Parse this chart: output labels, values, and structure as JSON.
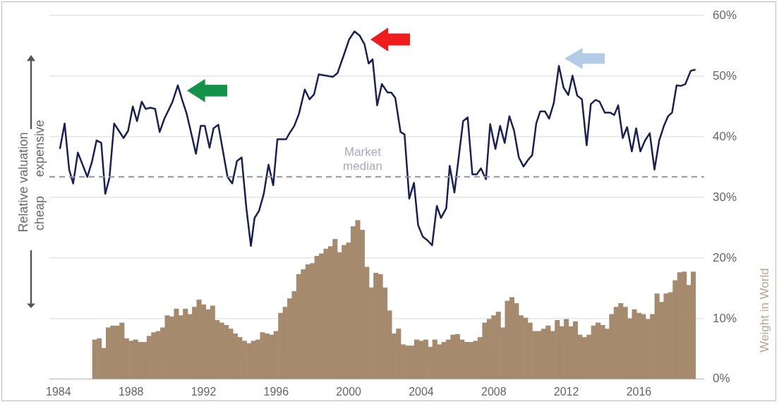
{
  "chart_data": {
    "type": "line",
    "ylabel": "Weight in World",
    "annotations": [
      "Relative valuation",
      "cheap",
      "expensive"
    ],
    "xlim": [
      1983.5,
      2019.6
    ],
    "xticks": [
      1984,
      1988,
      1992,
      1996,
      2000,
      2004,
      2008,
      2012,
      2016
    ],
    "ylim": [
      0,
      60
    ],
    "yticks": [
      {
        "value": 0,
        "label": "0%"
      },
      {
        "value": 10,
        "label": "10%"
      },
      {
        "value": 20,
        "label": "20%"
      },
      {
        "value": 30,
        "label": "30%"
      },
      {
        "value": 40,
        "label": "40%"
      },
      {
        "value": 50,
        "label": "50%"
      },
      {
        "value": 60,
        "label": "60%"
      }
    ],
    "grid": "y",
    "legend": false,
    "ref_lines": [
      {
        "axis": "y",
        "value": 33.4,
        "label": "Market median",
        "color": "#8d93a8",
        "line_style": "dashed"
      }
    ],
    "series": [
      {
        "type": "bar",
        "color": "#a58a6e",
        "x": [
          1986,
          1986.25,
          1986.5,
          1986.75,
          1987,
          1987.25,
          1987.5,
          1987.75,
          1988,
          1988.25,
          1988.5,
          1988.75,
          1989,
          1989.25,
          1989.5,
          1989.75,
          1990,
          1990.25,
          1990.5,
          1990.75,
          1991,
          1991.25,
          1991.5,
          1991.75,
          1992,
          1992.25,
          1992.5,
          1992.75,
          1993,
          1993.25,
          1993.5,
          1993.75,
          1994,
          1994.25,
          1994.5,
          1994.75,
          1995,
          1995.25,
          1995.5,
          1995.75,
          1996,
          1996.25,
          1996.5,
          1996.75,
          1997,
          1997.25,
          1997.5,
          1997.75,
          1998,
          1998.25,
          1998.5,
          1998.75,
          1999,
          1999.25,
          1999.5,
          1999.75,
          2000,
          2000.25,
          2000.5,
          2000.75,
          2001,
          2001.25,
          2001.5,
          2001.75,
          2002,
          2002.25,
          2002.5,
          2002.75,
          2003,
          2003.25,
          2003.5,
          2003.75,
          2004,
          2004.25,
          2004.5,
          2004.75,
          2005,
          2005.25,
          2005.5,
          2005.75,
          2006,
          2006.25,
          2006.5,
          2006.75,
          2007,
          2007.25,
          2007.5,
          2007.75,
          2008,
          2008.25,
          2008.5,
          2008.75,
          2009,
          2009.25,
          2009.5,
          2009.75,
          2010,
          2010.25,
          2010.5,
          2010.75,
          2011,
          2011.25,
          2011.5,
          2011.75,
          2012,
          2012.25,
          2012.5,
          2012.75,
          2013,
          2013.25,
          2013.5,
          2013.75,
          2014,
          2014.25,
          2014.5,
          2014.75,
          2015,
          2015.25,
          2015.5,
          2015.75,
          2016,
          2016.25,
          2016.5,
          2016.75,
          2017,
          2017.25,
          2017.5,
          2017.75,
          2018,
          2018.25,
          2018.5,
          2018.75,
          2019
        ],
        "values": [
          6.5,
          6.7,
          5.1,
          8.5,
          8.8,
          8.8,
          9.3,
          6.7,
          6.3,
          6.5,
          6.1,
          6.1,
          7.1,
          7.7,
          7.9,
          8.5,
          10.5,
          10.3,
          11.6,
          10.5,
          11.6,
          10.7,
          11.9,
          13.1,
          12.3,
          11.5,
          12.1,
          9.7,
          9.3,
          8.9,
          8.3,
          7.5,
          6.9,
          6.3,
          5.9,
          6.3,
          6.5,
          7.7,
          7.5,
          7.3,
          7.9,
          10.9,
          11.9,
          13.3,
          14.5,
          17.3,
          18.1,
          18.9,
          19.1,
          20.3,
          20.7,
          21.5,
          21.9,
          23.1,
          20.9,
          22.1,
          22.5,
          25.2,
          26.2,
          24.6,
          18.5,
          15.1,
          17.5,
          17.3,
          15.1,
          11.3,
          7.5,
          8.3,
          5.7,
          5.5,
          5.5,
          6.5,
          6.3,
          6.5,
          5.3,
          6.5,
          5.7,
          6.1,
          6.5,
          7.3,
          7.4,
          6.5,
          6.1,
          6.1,
          6.3,
          6.9,
          9.3,
          9.9,
          10.5,
          11.1,
          8.5,
          12.9,
          13.5,
          12.5,
          10.5,
          10.1,
          9.3,
          7.9,
          7.9,
          8.3,
          8.8,
          7.9,
          9.7,
          8.7,
          9.9,
          8.7,
          9.5,
          7.3,
          6.9,
          7.3,
          8.8,
          9.3,
          8.9,
          8.3,
          10.7,
          11.9,
          12.5,
          11.9,
          10.0,
          11.5,
          10.9,
          10.7,
          9.9,
          10.7,
          14.1,
          12.7,
          14.1,
          14.3,
          16.3,
          17.6,
          17.7,
          15.5,
          17.7
        ]
      },
      {
        "color": "#1a2050",
        "x": [
          1984.08,
          1984.34,
          1984.59,
          1984.81,
          1985.07,
          1985.33,
          1985.59,
          1985.84,
          1986.1,
          1986.36,
          1986.58,
          1986.81,
          1987.07,
          1987.33,
          1987.59,
          1987.84,
          1988.1,
          1988.33,
          1988.59,
          1988.81,
          1989.07,
          1989.33,
          1989.58,
          1989.84,
          1990.1,
          1990.29,
          1990.58,
          1990.81,
          1991.07,
          1991.32,
          1991.58,
          1991.84,
          1992.07,
          1992.33,
          1992.55,
          1992.81,
          1993.06,
          1993.32,
          1993.58,
          1993.84,
          1994.1,
          1994.36,
          1994.61,
          1994.81,
          1995.06,
          1995.32,
          1995.58,
          1995.84,
          1996.07,
          1996.55,
          1996.74,
          1997.0,
          1997.26,
          1997.58,
          1997.84,
          1998.09,
          1998.35,
          1999.13,
          1999.38,
          1999.71,
          2000.03,
          2000.32,
          2000.61,
          2000.87,
          2001.1,
          2001.32,
          2001.57,
          2001.83,
          2002.15,
          2002.35,
          2002.57,
          2002.86,
          2003.08,
          2003.34,
          2003.6,
          2003.83,
          2004.09,
          2004.35,
          2004.6,
          2004.86,
          2005.09,
          2005.38,
          2005.57,
          2005.83,
          2006.31,
          2006.56,
          2006.82,
          2007.06,
          2007.29,
          2007.57,
          2007.8,
          2008.09,
          2008.35,
          2008.6,
          2008.86,
          2009.12,
          2009.38,
          2009.64,
          2009.89,
          2010.12,
          2010.34,
          2010.56,
          2010.82,
          2011.05,
          2011.31,
          2011.59,
          2011.85,
          2012.11,
          2012.34,
          2012.6,
          2012.86,
          2013.12,
          2013.35,
          2013.61,
          2013.83,
          2014.12,
          2014.41,
          2014.64,
          2014.86,
          2015.11,
          2015.35,
          2015.61,
          2015.85,
          2016.08,
          2016.34,
          2016.6,
          2016.86,
          2017.12,
          2017.38,
          2017.61,
          2017.83,
          2018.08,
          2018.31,
          2018.56,
          2018.86,
          2019.12
        ],
        "values": [
          38.0,
          42.2,
          34.6,
          32.3,
          37.4,
          35.4,
          33.4,
          35.8,
          39.4,
          39.0,
          30.6,
          33.2,
          42.2,
          41.0,
          39.8,
          41.0,
          45.0,
          42.6,
          45.8,
          44.6,
          44.8,
          44.6,
          40.8,
          43.0,
          44.6,
          45.8,
          48.5,
          46.2,
          43.8,
          40.6,
          37.2,
          41.8,
          41.8,
          38.2,
          41.4,
          42.0,
          37.8,
          33.4,
          32.3,
          36.0,
          36.6,
          28.2,
          22.0,
          26.6,
          27.8,
          30.6,
          35.4,
          32.0,
          39.6,
          39.6,
          40.6,
          41.8,
          43.8,
          47.8,
          46.2,
          47.0,
          50.3,
          49.9,
          50.5,
          53.3,
          56.1,
          57.4,
          56.7,
          55.3,
          52.1,
          52.8,
          45.2,
          48.7,
          47.3,
          47.3,
          46.4,
          40.8,
          40.4,
          29.8,
          32.4,
          25.4,
          23.5,
          22.9,
          22.1,
          28.6,
          26.6,
          28.2,
          35.2,
          30.8,
          42.6,
          43.2,
          33.8,
          33.8,
          34.8,
          33.0,
          42.1,
          38.0,
          41.8,
          39.0,
          43.4,
          41.0,
          36.6,
          35.1,
          36.2,
          37.0,
          42.2,
          44.2,
          44.2,
          43.0,
          45.6,
          51.7,
          48.1,
          46.9,
          50.1,
          46.8,
          46.2,
          38.6,
          45.4,
          46.1,
          45.8,
          44.0,
          44.0,
          43.6,
          45.2,
          39.8,
          41.6,
          37.6,
          41.4,
          37.6,
          39.4,
          40.6,
          34.6,
          39.4,
          41.8,
          43.4,
          44.0,
          48.5,
          48.4,
          48.7,
          50.9,
          51.1
        ]
      }
    ]
  }
}
